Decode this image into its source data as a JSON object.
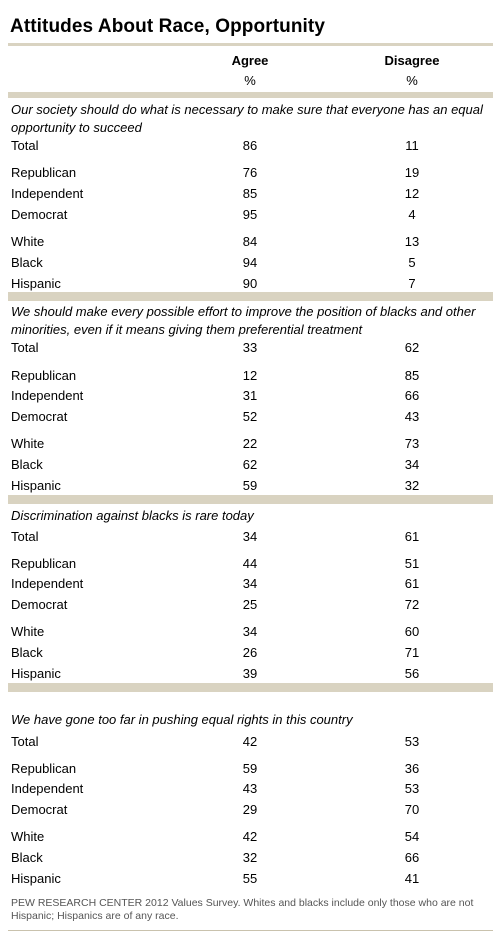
{
  "title": "Attitudes About Race, Opportunity",
  "columns": {
    "agree": "Agree",
    "disagree": "Disagree",
    "unit": "%"
  },
  "chart_data": {
    "type": "table",
    "title": "Attitudes About Race, Opportunity",
    "columns": [
      "Agree",
      "Disagree"
    ],
    "unit": "%",
    "sections": [
      {
        "question": "Our society should do what is necessary to make sure that everyone has an equal opportunity to succeed",
        "rows": [
          {
            "label": "Total",
            "agree": "86",
            "disagree": "11"
          },
          {
            "label": "Republican",
            "agree": "76",
            "disagree": "19"
          },
          {
            "label": "Independent",
            "agree": "85",
            "disagree": "12"
          },
          {
            "label": "Democrat",
            "agree": "95",
            "disagree": "4"
          },
          {
            "label": "White",
            "agree": "84",
            "disagree": "13"
          },
          {
            "label": "Black",
            "agree": "94",
            "disagree": "5"
          },
          {
            "label": "Hispanic",
            "agree": "90",
            "disagree": "7"
          }
        ]
      },
      {
        "question": "We should make every possible effort to improve the position of blacks and other minorities, even if it means giving them preferential treatment",
        "rows": [
          {
            "label": "Total",
            "agree": "33",
            "disagree": "62"
          },
          {
            "label": "Republican",
            "agree": "12",
            "disagree": "85"
          },
          {
            "label": "Independent",
            "agree": "31",
            "disagree": "66"
          },
          {
            "label": "Democrat",
            "agree": "52",
            "disagree": "43"
          },
          {
            "label": "White",
            "agree": "22",
            "disagree": "73"
          },
          {
            "label": "Black",
            "agree": "62",
            "disagree": "34"
          },
          {
            "label": "Hispanic",
            "agree": "59",
            "disagree": "32"
          }
        ]
      },
      {
        "question": "Discrimination against blacks is rare today",
        "rows": [
          {
            "label": "Total",
            "agree": "34",
            "disagree": "61"
          },
          {
            "label": "Republican",
            "agree": "44",
            "disagree": "51"
          },
          {
            "label": "Independent",
            "agree": "34",
            "disagree": "61"
          },
          {
            "label": "Democrat",
            "agree": "25",
            "disagree": "72"
          },
          {
            "label": "White",
            "agree": "34",
            "disagree": "60"
          },
          {
            "label": "Black",
            "agree": "26",
            "disagree": "71"
          },
          {
            "label": "Hispanic",
            "agree": "39",
            "disagree": "56"
          }
        ]
      },
      {
        "question": "We have gone too far in pushing equal rights in this country",
        "rows": [
          {
            "label": "Total",
            "agree": "42",
            "disagree": "53"
          },
          {
            "label": "Republican",
            "agree": "59",
            "disagree": "36"
          },
          {
            "label": "Independent",
            "agree": "43",
            "disagree": "53"
          },
          {
            "label": "Democrat",
            "agree": "29",
            "disagree": "70"
          },
          {
            "label": "White",
            "agree": "42",
            "disagree": "54"
          },
          {
            "label": "Black",
            "agree": "32",
            "disagree": "66"
          },
          {
            "label": "Hispanic",
            "agree": "55",
            "disagree": "41"
          }
        ]
      }
    ]
  },
  "footnote": "PEW RESEARCH CENTER 2012 Values Survey. Whites and blacks include only those who are not Hispanic; Hispanics are of any race.",
  "colors": {
    "rule": "#d9d3c1",
    "footnote": "#555555"
  }
}
